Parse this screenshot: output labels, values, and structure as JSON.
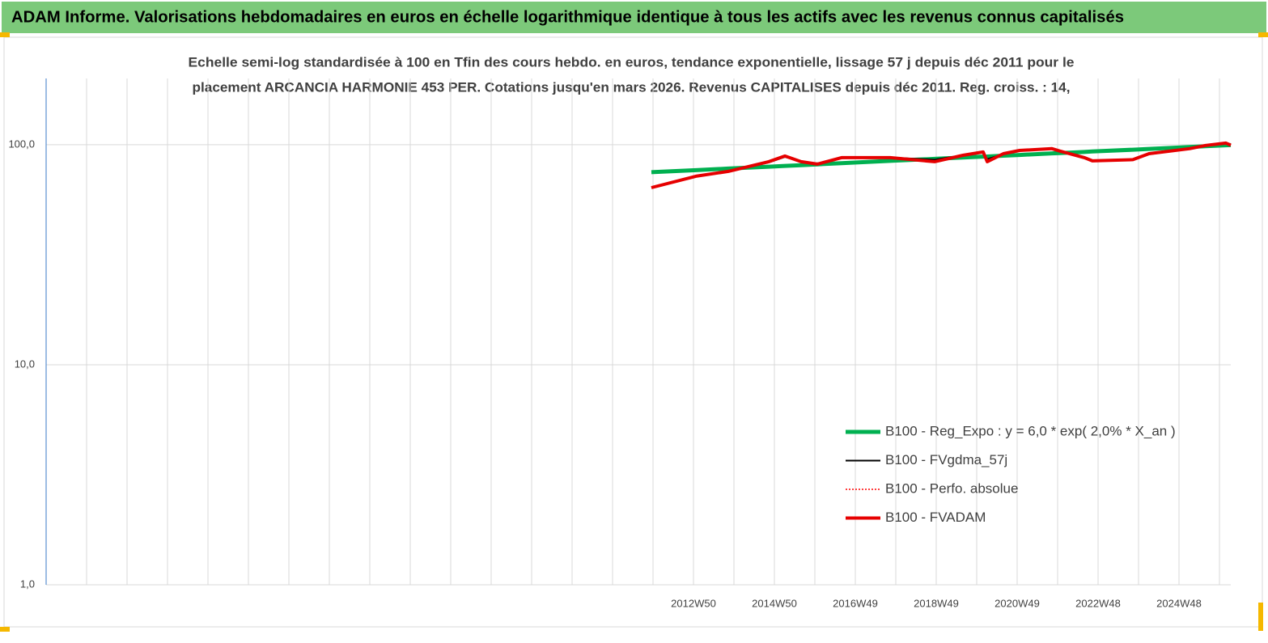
{
  "header": {
    "title": "ADAM Informe. Valorisations hebdomadaires en euros en échelle logarithmique identique à tous les actifs avec les revenus connus capitalisés"
  },
  "chart_data": {
    "type": "line",
    "title": "Echelle semi-log standardisée à 100 en Tfin des cours hebdo. en euros, tendance exponentielle, lissage 57 j depuis déc 2011 pour le",
    "subtitle": "placement ARCANCIA HARMONIE 453 PER. Cotations jusqu'en mars 2026. Revenus CAPITALISES depuis déc 2011. Reg. croiss. : 14,",
    "log_scale": true,
    "grid": true,
    "ylim": [
      1,
      200
    ],
    "yticks": [
      {
        "value": 1,
        "label": "1,0"
      },
      {
        "value": 10,
        "label": "10,0"
      },
      {
        "value": 100,
        "label": "100,0"
      }
    ],
    "xlim": [
      1996.95,
      2026.23
    ],
    "xticks": [
      {
        "value": 1997.95,
        "label": null
      },
      {
        "value": 1998.95,
        "label": null
      },
      {
        "value": 1999.95,
        "label": null
      },
      {
        "value": 2000.95,
        "label": null
      },
      {
        "value": 2001.95,
        "label": null
      },
      {
        "value": 2002.95,
        "label": null
      },
      {
        "value": 2003.95,
        "label": null
      },
      {
        "value": 2004.95,
        "label": null
      },
      {
        "value": 2005.95,
        "label": null
      },
      {
        "value": 2006.95,
        "label": null
      },
      {
        "value": 2007.95,
        "label": null
      },
      {
        "value": 2008.95,
        "label": null
      },
      {
        "value": 2009.95,
        "label": null
      },
      {
        "value": 2010.95,
        "label": null
      },
      {
        "value": 2011.95,
        "label": null
      },
      {
        "value": 2012.95,
        "label": "2012W50"
      },
      {
        "value": 2013.95,
        "label": null
      },
      {
        "value": 2014.95,
        "label": "2014W50"
      },
      {
        "value": 2015.95,
        "label": null
      },
      {
        "value": 2016.95,
        "label": "2016W49"
      },
      {
        "value": 2017.95,
        "label": null
      },
      {
        "value": 2018.95,
        "label": "2018W49"
      },
      {
        "value": 2019.95,
        "label": null
      },
      {
        "value": 2020.95,
        "label": "2020W49"
      },
      {
        "value": 2021.95,
        "label": null
      },
      {
        "value": 2022.95,
        "label": "2022W48"
      },
      {
        "value": 2023.95,
        "label": null
      },
      {
        "value": 2024.95,
        "label": "2024W48"
      },
      {
        "value": 2025.95,
        "label": null
      }
    ],
    "x": [
      2011.91,
      2013.01,
      2013.81,
      2014.81,
      2015.21,
      2015.61,
      2016.01,
      2016.61,
      2017.81,
      2018.91,
      2019.61,
      2020.11,
      2020.21,
      2020.61,
      2021.01,
      2021.81,
      2022.01,
      2022.61,
      2022.81,
      2023.81,
      2024.21,
      2025.21,
      2025.61,
      2026.11,
      2026.23
    ],
    "series": [
      {
        "name": "B100 - Reg_Expo : y = 6,0 * exp( 2,0% *  X_an )",
        "color": "#00b050",
        "width": 5,
        "dash": false,
        "values": [
          75,
          76.6,
          77.9,
          79.4,
          80.1,
          80.7,
          81.4,
          82.4,
          84.4,
          86.2,
          87.4,
          88.3,
          88.4,
          89.1,
          89.8,
          91.3,
          91.6,
          92.7,
          93.1,
          94.9,
          95.7,
          97.6,
          98.4,
          99.4,
          99.6
        ]
      },
      {
        "name": "B100 - FVgdma_57j",
        "color": "#000000",
        "width": 2,
        "dash": false,
        "values": [
          64,
          71.5,
          75.5,
          83,
          88,
          84,
          82,
          86.8,
          87.5,
          85.5,
          89.5,
          92,
          86,
          90.5,
          94,
          95.5,
          93.5,
          88,
          85,
          85.5,
          90.5,
          95.5,
          99,
          101,
          99.5
        ]
      },
      {
        "name": "B100 - Perfo. absolue",
        "color": "#ff0000",
        "width": 1.5,
        "dash": true,
        "values": [
          63.8,
          71.9,
          75.6,
          83.7,
          88.8,
          83.7,
          81.6,
          87.3,
          87.3,
          83.7,
          89.5,
          92.7,
          83.7,
          91,
          94.2,
          95.9,
          93.5,
          87.3,
          84.4,
          85.5,
          91,
          95.9,
          99.2,
          101.7,
          99.5
        ]
      },
      {
        "name": "B100 - FVADAM",
        "color": "#e60000",
        "width": 4,
        "dash": false,
        "values": [
          63.8,
          71.9,
          75.6,
          83.7,
          88.8,
          83.7,
          81.6,
          87.3,
          87.3,
          83.7,
          89.5,
          92.7,
          83.7,
          91,
          94.2,
          95.9,
          93.5,
          87.3,
          84.4,
          85.5,
          91,
          95.9,
          99.2,
          101.7,
          99.5
        ]
      }
    ]
  }
}
